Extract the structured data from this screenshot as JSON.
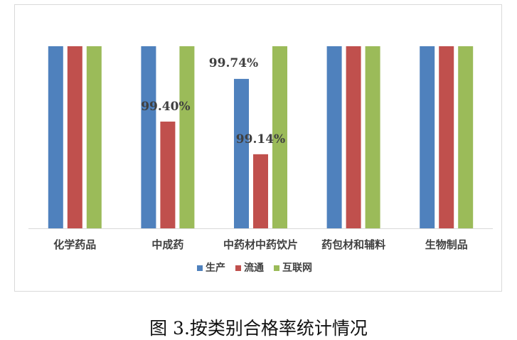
{
  "chart_data": {
    "type": "bar",
    "categories": [
      "化学药品",
      "中成药",
      "中药材中药饮片",
      "药包材和辅料",
      "生物制品"
    ],
    "series": [
      {
        "name": "生产",
        "values": [
          100,
          100,
          99.74,
          100,
          100
        ],
        "color": "#4f81bd"
      },
      {
        "name": "流通",
        "values": [
          100,
          99.4,
          99.14,
          100,
          100
        ],
        "color": "#c0504d"
      },
      {
        "name": "互联网",
        "values": [
          100,
          100,
          100,
          100,
          100
        ],
        "color": "#9bbb59"
      }
    ],
    "data_labels": [
      {
        "series": 0,
        "category": 2,
        "text": "99.74%"
      },
      {
        "series": 1,
        "category": 1,
        "text": "99.40%"
      },
      {
        "series": 1,
        "category": 2,
        "text": "99.14%"
      }
    ],
    "ylim": [
      98.55,
      100
    ],
    "grid": false,
    "legend": "bottom",
    "title": "",
    "xlabel": "",
    "ylabel": ""
  },
  "caption": "图 3.按类别合格率统计情况"
}
